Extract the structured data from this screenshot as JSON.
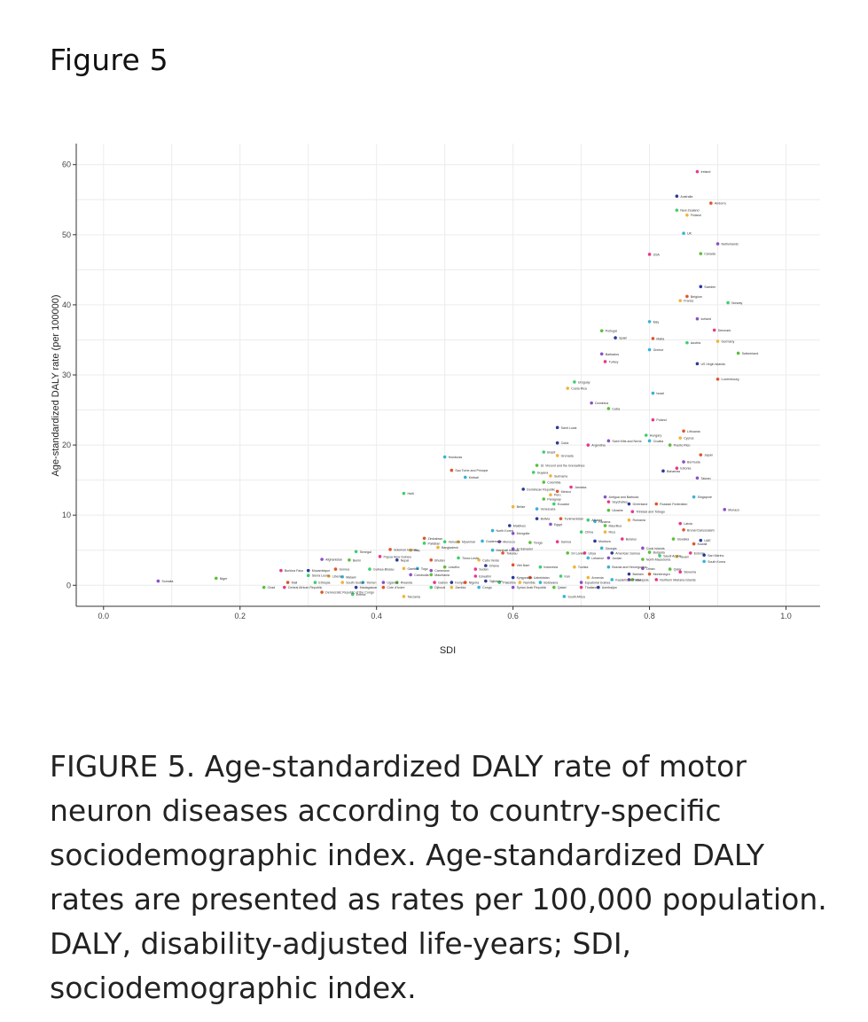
{
  "figure": {
    "title": "Figure 5"
  },
  "caption": "FIGURE 5. Age-standardized DALY rate of motor neuron diseases according to country-specific sociodemographic index. Age-standardized DALY rates are presented as rates per 100,000 population. DALY, disability-adjusted life-years; SDI, sociodemographic index.",
  "chart_data": {
    "type": "scatter",
    "xlabel": "SDI",
    "ylabel": "Age-standardized DALY rate (per 100000)",
    "xlim": [
      -0.04,
      1.05
    ],
    "ylim": [
      -3,
      63
    ],
    "xticks": [
      0.0,
      0.2,
      0.4,
      0.6,
      0.8,
      1.0
    ],
    "xtick_labels": [
      "0.0",
      "0.2",
      "0.4",
      "0.6",
      "0.8",
      "1.0"
    ],
    "yticks": [
      0,
      10,
      20,
      30,
      40,
      50,
      60
    ],
    "ytick_labels": [
      "0",
      "10",
      "20",
      "30",
      "40",
      "50",
      "60"
    ],
    "grid": true,
    "legend": "none",
    "colors": [
      "#e8388a",
      "#2b3a9a",
      "#e0552a",
      "#3ccf6e",
      "#f0b43a",
      "#35b3d9",
      "#8a4fc9",
      "#5bbf3a"
    ],
    "points": [
      {
        "label": "Ireland",
        "x": 0.87,
        "y": 59.0
      },
      {
        "label": "Australia",
        "x": 0.84,
        "y": 55.5
      },
      {
        "label": "Andorra",
        "x": 0.89,
        "y": 54.5
      },
      {
        "label": "New Zealand",
        "x": 0.84,
        "y": 53.5
      },
      {
        "label": "Finland",
        "x": 0.855,
        "y": 52.8
      },
      {
        "label": "UK",
        "x": 0.85,
        "y": 50.2
      },
      {
        "label": "Netherlands",
        "x": 0.9,
        "y": 48.7
      },
      {
        "label": "Canada",
        "x": 0.875,
        "y": 47.3
      },
      {
        "label": "USA",
        "x": 0.8,
        "y": 47.2
      },
      {
        "label": "Sweden",
        "x": 0.875,
        "y": 42.6
      },
      {
        "label": "Belgium",
        "x": 0.855,
        "y": 41.2
      },
      {
        "label": "Norway",
        "x": 0.915,
        "y": 40.3
      },
      {
        "label": "France",
        "x": 0.845,
        "y": 40.6
      },
      {
        "label": "Italy",
        "x": 0.8,
        "y": 37.6
      },
      {
        "label": "Iceland",
        "x": 0.87,
        "y": 38.0
      },
      {
        "label": "Portugal",
        "x": 0.73,
        "y": 36.3
      },
      {
        "label": "Denmark",
        "x": 0.895,
        "y": 36.4
      },
      {
        "label": "Spain",
        "x": 0.75,
        "y": 35.3
      },
      {
        "label": "Malta",
        "x": 0.805,
        "y": 35.2
      },
      {
        "label": "Austria",
        "x": 0.855,
        "y": 34.6
      },
      {
        "label": "Germany",
        "x": 0.9,
        "y": 34.8
      },
      {
        "label": "Greece",
        "x": 0.8,
        "y": 33.6
      },
      {
        "label": "Barbados",
        "x": 0.73,
        "y": 33.0
      },
      {
        "label": "Switzerland",
        "x": 0.93,
        "y": 33.1
      },
      {
        "label": "Turkey",
        "x": 0.735,
        "y": 31.9
      },
      {
        "label": "US Virgin Islands",
        "x": 0.87,
        "y": 31.6
      },
      {
        "label": "Luxembourg",
        "x": 0.9,
        "y": 29.4
      },
      {
        "label": "Uruguay",
        "x": 0.69,
        "y": 29.0
      },
      {
        "label": "Costa Rica",
        "x": 0.68,
        "y": 28.1
      },
      {
        "label": "Israel",
        "x": 0.805,
        "y": 27.4
      },
      {
        "label": "Dominica",
        "x": 0.715,
        "y": 26.0
      },
      {
        "label": "Cuba",
        "x": 0.74,
        "y": 25.2
      },
      {
        "label": "Poland",
        "x": 0.805,
        "y": 23.6
      },
      {
        "label": "Saint Lucia",
        "x": 0.665,
        "y": 22.5
      },
      {
        "label": "Lithuania",
        "x": 0.85,
        "y": 22.0
      },
      {
        "label": "Hungary",
        "x": 0.795,
        "y": 21.4
      },
      {
        "label": "Cyprus",
        "x": 0.845,
        "y": 21.0
      },
      {
        "label": "Croatia",
        "x": 0.8,
        "y": 20.6
      },
      {
        "label": "Saint Kitts and Nevis",
        "x": 0.74,
        "y": 20.6
      },
      {
        "label": "Puerto Rico",
        "x": 0.83,
        "y": 20.0
      },
      {
        "label": "Argentina",
        "x": 0.71,
        "y": 20.0
      },
      {
        "label": "Cuba",
        "x": 0.665,
        "y": 20.3
      },
      {
        "label": "Japan",
        "x": 0.875,
        "y": 18.6
      },
      {
        "label": "Brazil",
        "x": 0.645,
        "y": 19.0
      },
      {
        "label": "Grenada",
        "x": 0.665,
        "y": 18.5
      },
      {
        "label": "Honduras",
        "x": 0.5,
        "y": 18.3
      },
      {
        "label": "Bermuda",
        "x": 0.85,
        "y": 17.6
      },
      {
        "label": "St. Vincent and the Grenadines",
        "x": 0.635,
        "y": 17.1
      },
      {
        "label": "Estonia",
        "x": 0.84,
        "y": 16.7
      },
      {
        "label": "Bahamas",
        "x": 0.82,
        "y": 16.3
      },
      {
        "label": "Sao Tome and Principe",
        "x": 0.51,
        "y": 16.4
      },
      {
        "label": "Guyana",
        "x": 0.63,
        "y": 16.1
      },
      {
        "label": "Suriname",
        "x": 0.655,
        "y": 15.6
      },
      {
        "label": "Kiribati",
        "x": 0.53,
        "y": 15.4
      },
      {
        "label": "Taiwan",
        "x": 0.87,
        "y": 15.3
      },
      {
        "label": "Colombia",
        "x": 0.645,
        "y": 14.7
      },
      {
        "label": "Jamaica",
        "x": 0.685,
        "y": 14.0
      },
      {
        "label": "Dominican Republic",
        "x": 0.615,
        "y": 13.7
      },
      {
        "label": "Mexico",
        "x": 0.665,
        "y": 13.4
      },
      {
        "label": "Haiti",
        "x": 0.44,
        "y": 13.1
      },
      {
        "label": "Peru",
        "x": 0.655,
        "y": 12.9
      },
      {
        "label": "Singapore",
        "x": 0.865,
        "y": 12.6
      },
      {
        "label": "Antigua and Barbuda",
        "x": 0.735,
        "y": 12.6
      },
      {
        "label": "Paraguay",
        "x": 0.645,
        "y": 12.3
      },
      {
        "label": "Seychelles",
        "x": 0.74,
        "y": 11.9
      },
      {
        "label": "Greenland",
        "x": 0.77,
        "y": 11.6
      },
      {
        "label": "Russian Federation",
        "x": 0.81,
        "y": 11.6
      },
      {
        "label": "Ecuador",
        "x": 0.66,
        "y": 11.6
      },
      {
        "label": "Belize",
        "x": 0.6,
        "y": 11.2
      },
      {
        "label": "Venezuela",
        "x": 0.635,
        "y": 10.9
      },
      {
        "label": "Monaco",
        "x": 0.91,
        "y": 10.8
      },
      {
        "label": "Ukraine",
        "x": 0.74,
        "y": 10.7
      },
      {
        "label": "Trinidad and Tobago",
        "x": 0.775,
        "y": 10.5
      },
      {
        "label": "Bolivia",
        "x": 0.635,
        "y": 9.5
      },
      {
        "label": "Turkmenistan",
        "x": 0.67,
        "y": 9.5
      },
      {
        "label": "Albania",
        "x": 0.71,
        "y": 9.3
      },
      {
        "label": "Romania",
        "x": 0.77,
        "y": 9.3
      },
      {
        "label": "Panama",
        "x": 0.72,
        "y": 9.1
      },
      {
        "label": "Egypt",
        "x": 0.655,
        "y": 8.7
      },
      {
        "label": "Mauritius",
        "x": 0.735,
        "y": 8.5
      },
      {
        "label": "Latvia",
        "x": 0.845,
        "y": 8.8
      },
      {
        "label": "Maldives",
        "x": 0.595,
        "y": 8.5
      },
      {
        "label": "Brunei Darussalam",
        "x": 0.85,
        "y": 7.9
      },
      {
        "label": "China",
        "x": 0.7,
        "y": 7.6
      },
      {
        "label": "Rica",
        "x": 0.735,
        "y": 7.6
      },
      {
        "label": "North Korea",
        "x": 0.57,
        "y": 7.8
      },
      {
        "label": "Mongolia",
        "x": 0.6,
        "y": 7.4
      },
      {
        "label": "Slovakia",
        "x": 0.835,
        "y": 6.6
      },
      {
        "label": "Belarus",
        "x": 0.76,
        "y": 6.6
      },
      {
        "label": "UAE",
        "x": 0.875,
        "y": 6.4
      },
      {
        "label": "Zimbabwe",
        "x": 0.47,
        "y": 6.7
      },
      {
        "label": "Vanuatu",
        "x": 0.5,
        "y": 6.2
      },
      {
        "label": "Myanmar",
        "x": 0.52,
        "y": 6.2
      },
      {
        "label": "Guatemala",
        "x": 0.555,
        "y": 6.3
      },
      {
        "label": "Morocco",
        "x": 0.58,
        "y": 6.2
      },
      {
        "label": "Tonga",
        "x": 0.625,
        "y": 6.1
      },
      {
        "label": "Samoa",
        "x": 0.665,
        "y": 6.2
      },
      {
        "label": "Moldova",
        "x": 0.72,
        "y": 6.3
      },
      {
        "label": "Kuwait",
        "x": 0.865,
        "y": 5.9
      },
      {
        "label": "Pakistan",
        "x": 0.47,
        "y": 6.0
      },
      {
        "label": "Bangladesh",
        "x": 0.49,
        "y": 5.4
      },
      {
        "label": "Georgia",
        "x": 0.73,
        "y": 5.3
      },
      {
        "label": "Cook Islands",
        "x": 0.79,
        "y": 5.3
      },
      {
        "label": "Bulgaria",
        "x": 0.8,
        "y": 4.7
      },
      {
        "label": "Estonia",
        "x": 0.86,
        "y": 4.6
      },
      {
        "label": "San Marino",
        "x": 0.88,
        "y": 4.3
      },
      {
        "label": "Solomon Islands",
        "x": 0.42,
        "y": 5.1
      },
      {
        "label": "Senegal",
        "x": 0.37,
        "y": 4.8
      },
      {
        "label": "Iraq",
        "x": 0.45,
        "y": 5.0
      },
      {
        "label": "Marshall Islands",
        "x": 0.57,
        "y": 5.0
      },
      {
        "label": "El Salvador",
        "x": 0.6,
        "y": 5.2
      },
      {
        "label": "Sri Lanka",
        "x": 0.68,
        "y": 4.6
      },
      {
        "label": "Libya",
        "x": 0.705,
        "y": 4.6
      },
      {
        "label": "American Samoa",
        "x": 0.745,
        "y": 4.6
      },
      {
        "label": "Tokelau",
        "x": 0.585,
        "y": 4.6
      },
      {
        "label": "Saudi Arabia",
        "x": 0.815,
        "y": 4.2
      },
      {
        "label": "Guam",
        "x": 0.84,
        "y": 4.1
      },
      {
        "label": "South Korea",
        "x": 0.88,
        "y": 3.4
      },
      {
        "label": "Afghanistan",
        "x": 0.32,
        "y": 3.7
      },
      {
        "label": "Benin",
        "x": 0.36,
        "y": 3.6
      },
      {
        "label": "Papua New Guinea",
        "x": 0.405,
        "y": 4.1
      },
      {
        "label": "Nepal",
        "x": 0.43,
        "y": 3.6
      },
      {
        "label": "Bhutan",
        "x": 0.48,
        "y": 3.6
      },
      {
        "label": "Timor-Leste",
        "x": 0.52,
        "y": 3.9
      },
      {
        "label": "Cabo Verde",
        "x": 0.55,
        "y": 3.6
      },
      {
        "label": "Lebanon",
        "x": 0.71,
        "y": 3.9
      },
      {
        "label": "Jordan",
        "x": 0.74,
        "y": 3.9
      },
      {
        "label": "North Macedonia",
        "x": 0.79,
        "y": 3.7
      },
      {
        "label": "Burkina Faso",
        "x": 0.26,
        "y": 2.1
      },
      {
        "label": "Mozambique",
        "x": 0.3,
        "y": 2.1
      },
      {
        "label": "Guinea",
        "x": 0.34,
        "y": 2.3
      },
      {
        "label": "Guinea-Bissau",
        "x": 0.39,
        "y": 2.3
      },
      {
        "label": "Gambia",
        "x": 0.44,
        "y": 2.4
      },
      {
        "label": "Togo",
        "x": 0.46,
        "y": 2.4
      },
      {
        "label": "Cameroon",
        "x": 0.48,
        "y": 2.1
      },
      {
        "label": "Lesotho",
        "x": 0.5,
        "y": 2.6
      },
      {
        "label": "Sudan",
        "x": 0.545,
        "y": 2.3
      },
      {
        "label": "Ghana",
        "x": 0.56,
        "y": 2.8
      },
      {
        "label": "Viet Nam",
        "x": 0.6,
        "y": 2.9
      },
      {
        "label": "Indonesia",
        "x": 0.64,
        "y": 2.6
      },
      {
        "label": "Tunisia",
        "x": 0.69,
        "y": 2.6
      },
      {
        "label": "Bosnia and Herzegovina",
        "x": 0.74,
        "y": 2.6
      },
      {
        "label": "Oman",
        "x": 0.79,
        "y": 2.4
      },
      {
        "label": "Qatar",
        "x": 0.83,
        "y": 2.3
      },
      {
        "label": "Slovenia",
        "x": 0.845,
        "y": 1.9
      },
      {
        "label": "Bahrain",
        "x": 0.77,
        "y": 1.6
      },
      {
        "label": "Montenegro",
        "x": 0.8,
        "y": 1.6
      },
      {
        "label": "Sierra Leone",
        "x": 0.3,
        "y": 1.4
      },
      {
        "label": "Liberia",
        "x": 0.33,
        "y": 1.3
      },
      {
        "label": "Malawi",
        "x": 0.35,
        "y": 1.2
      },
      {
        "label": "Cambodia",
        "x": 0.45,
        "y": 1.5
      },
      {
        "label": "Mauritania",
        "x": 0.48,
        "y": 1.5
      },
      {
        "label": "Eswatini",
        "x": 0.545,
        "y": 1.3
      },
      {
        "label": "Kyrgyzstan",
        "x": 0.6,
        "y": 1.1
      },
      {
        "label": "Uzbekistan",
        "x": 0.625,
        "y": 1.1
      },
      {
        "label": "Iran",
        "x": 0.67,
        "y": 1.3
      },
      {
        "label": "Armenia",
        "x": 0.71,
        "y": 1.1
      },
      {
        "label": "Kazakhstan",
        "x": 0.745,
        "y": 0.8
      },
      {
        "label": "Palau",
        "x": 0.77,
        "y": 0.8
      },
      {
        "label": "Malaysia",
        "x": 0.775,
        "y": 0.8
      },
      {
        "label": "Northern Mariana Islands",
        "x": 0.81,
        "y": 0.8
      },
      {
        "label": "Tajikistan",
        "x": 0.56,
        "y": 0.6
      },
      {
        "label": "Mali",
        "x": 0.27,
        "y": 0.4
      },
      {
        "label": "Ethiopia",
        "x": 0.31,
        "y": 0.4
      },
      {
        "label": "South Sudan",
        "x": 0.35,
        "y": 0.4
      },
      {
        "label": "Yemen",
        "x": 0.38,
        "y": 0.4
      },
      {
        "label": "Uganda",
        "x": 0.41,
        "y": 0.4
      },
      {
        "label": "Rwanda",
        "x": 0.43,
        "y": 0.4
      },
      {
        "label": "Gabon",
        "x": 0.485,
        "y": 0.4
      },
      {
        "label": "Kenya",
        "x": 0.51,
        "y": 0.4
      },
      {
        "label": "Nigeria",
        "x": 0.53,
        "y": 0.4
      },
      {
        "label": "Palestine",
        "x": 0.58,
        "y": 0.4
      },
      {
        "label": "Namibia",
        "x": 0.61,
        "y": 0.4
      },
      {
        "label": "Botswana",
        "x": 0.64,
        "y": 0.4
      },
      {
        "label": "Equatorial Guinea",
        "x": 0.7,
        "y": 0.4
      },
      {
        "label": "Chad",
        "x": 0.235,
        "y": -0.3
      },
      {
        "label": "Central African Republic",
        "x": 0.265,
        "y": -0.3
      },
      {
        "label": "Madagascar",
        "x": 0.37,
        "y": -0.3
      },
      {
        "label": "Cote d'Ivoire",
        "x": 0.41,
        "y": -0.3
      },
      {
        "label": "Djibouti",
        "x": 0.48,
        "y": -0.3
      },
      {
        "label": "Zambia",
        "x": 0.51,
        "y": -0.3
      },
      {
        "label": "Congo",
        "x": 0.55,
        "y": -0.3
      },
      {
        "label": "Syrian Arab Republic",
        "x": 0.6,
        "y": -0.3
      },
      {
        "label": "Qatari",
        "x": 0.66,
        "y": -0.3
      },
      {
        "label": "Thailand",
        "x": 0.7,
        "y": -0.3
      },
      {
        "label": "Azerbaijan",
        "x": 0.725,
        "y": -0.3
      },
      {
        "label": "Democratic Republic of the Congo",
        "x": 0.32,
        "y": -1.0
      },
      {
        "label": "Eritrea",
        "x": 0.365,
        "y": -1.3
      },
      {
        "label": "Tanzania",
        "x": 0.44,
        "y": -1.6
      },
      {
        "label": "South Africa",
        "x": 0.675,
        "y": -1.6
      },
      {
        "label": "Somalia",
        "x": 0.08,
        "y": 0.6
      },
      {
        "label": "Niger",
        "x": 0.165,
        "y": 1.0
      }
    ]
  }
}
